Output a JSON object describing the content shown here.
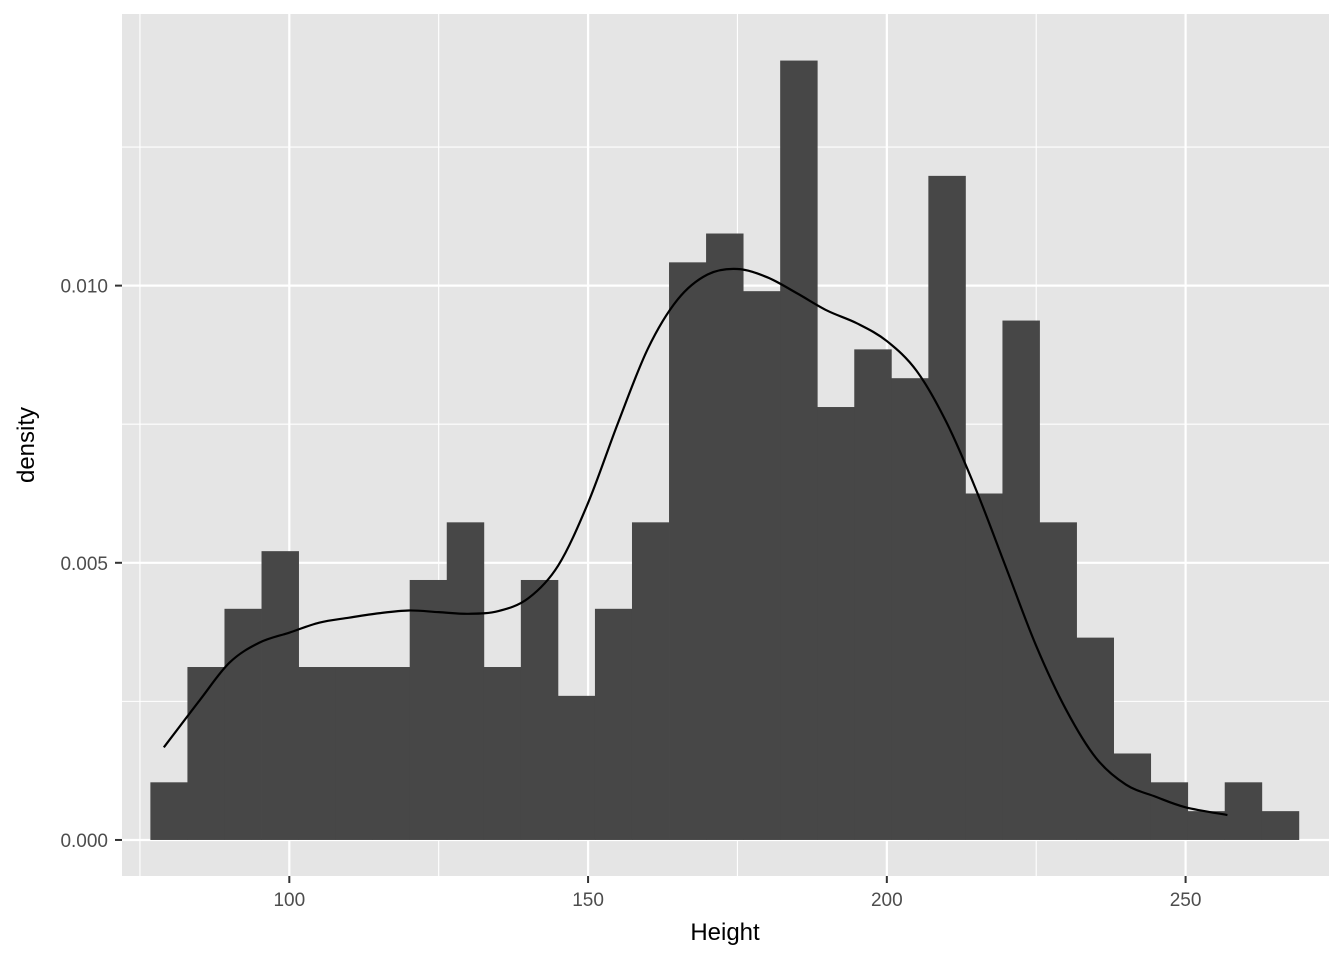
{
  "chart_data": {
    "type": "bar",
    "subtype": "histogram_with_density",
    "xlabel": "Height",
    "ylabel": "density",
    "xlim": [
      72,
      274
    ],
    "ylim": [
      -0.00065,
      0.0149
    ],
    "x_ticks": [
      100,
      150,
      200,
      250
    ],
    "x_tick_labels": [
      "100",
      "150",
      "200",
      "250"
    ],
    "y_ticks": [
      0.0,
      0.005,
      0.01
    ],
    "y_tick_labels": [
      "0.000",
      "0.005",
      "0.010"
    ],
    "grid": true,
    "colors": {
      "panel": "#e5e5e5",
      "grid": "#ffffff",
      "bar": "#474747",
      "line": "#000000"
    },
    "bins": {
      "start": 76.75,
      "width": 6.2,
      "values": [
        0.00104,
        0.00312,
        0.00417,
        0.00521,
        0.00312,
        0.00312,
        0.00312,
        0.00469,
        0.00573,
        0.00312,
        0.00469,
        0.0026,
        0.00417,
        0.00573,
        0.01042,
        0.01094,
        0.0099,
        0.01406,
        0.00781,
        0.00885,
        0.00833,
        0.01198,
        0.00625,
        0.00937,
        0.00573,
        0.00365,
        0.00156,
        0.00104,
        0.00052,
        0.00104,
        0.00052
      ]
    },
    "density_curve": {
      "x": [
        79,
        85,
        90,
        95,
        100,
        105,
        110,
        115,
        120,
        125,
        130,
        135,
        140,
        145,
        150,
        155,
        160,
        165,
        170,
        175,
        180,
        185,
        190,
        195,
        200,
        205,
        210,
        215,
        220,
        225,
        230,
        235,
        240,
        245,
        250,
        257
      ],
      "y": [
        0.00167,
        0.00252,
        0.0032,
        0.00356,
        0.00374,
        0.00392,
        0.00401,
        0.00409,
        0.00414,
        0.00411,
        0.00408,
        0.00413,
        0.00436,
        0.00495,
        0.00608,
        0.00752,
        0.00886,
        0.00975,
        0.0102,
        0.0103,
        0.01015,
        0.00986,
        0.00955,
        0.00932,
        0.009,
        0.00846,
        0.00753,
        0.0063,
        0.0049,
        0.0035,
        0.00235,
        0.00148,
        0.001,
        0.00078,
        0.00059,
        0.00045
      ]
    }
  }
}
